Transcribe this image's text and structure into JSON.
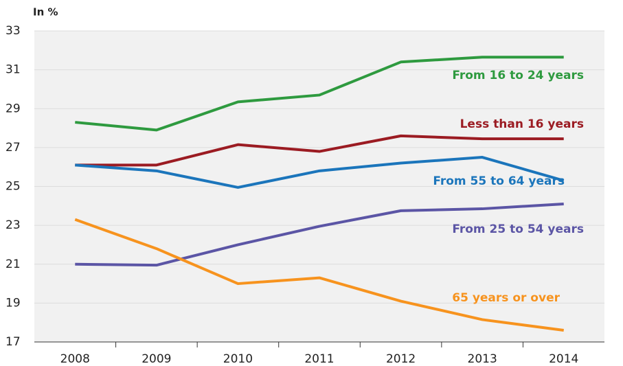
{
  "chart_data": {
    "type": "line",
    "y_label": "In %",
    "categories": [
      "2008",
      "2009",
      "2010",
      "2011",
      "2012",
      "2013",
      "2014"
    ],
    "series": [
      {
        "name": "From 16 to 24 years",
        "color": "#2e9a3f",
        "values": [
          28.3,
          27.9,
          29.35,
          29.7,
          31.4,
          31.65,
          31.65
        ]
      },
      {
        "name": "Less than 16 years",
        "color": "#9b1b22",
        "values": [
          26.1,
          26.1,
          27.15,
          26.8,
          27.6,
          27.45,
          27.45
        ]
      },
      {
        "name": "From 55 to 64 years",
        "color": "#1b75bb",
        "values": [
          26.1,
          25.8,
          24.95,
          25.8,
          26.2,
          26.5,
          25.3
        ]
      },
      {
        "name": "From 25 to 54 years",
        "color": "#5b55a5",
        "values": [
          21.0,
          20.95,
          22.0,
          22.95,
          23.75,
          23.85,
          24.1
        ]
      },
      {
        "name": "65 years or over",
        "color": "#f7931e",
        "values": [
          23.3,
          21.8,
          20.0,
          20.3,
          19.1,
          18.15,
          17.6
        ]
      }
    ],
    "ylim": [
      17,
      33
    ],
    "yticks": [
      17,
      19,
      21,
      23,
      25,
      27,
      29,
      31,
      33
    ],
    "grid": true
  }
}
